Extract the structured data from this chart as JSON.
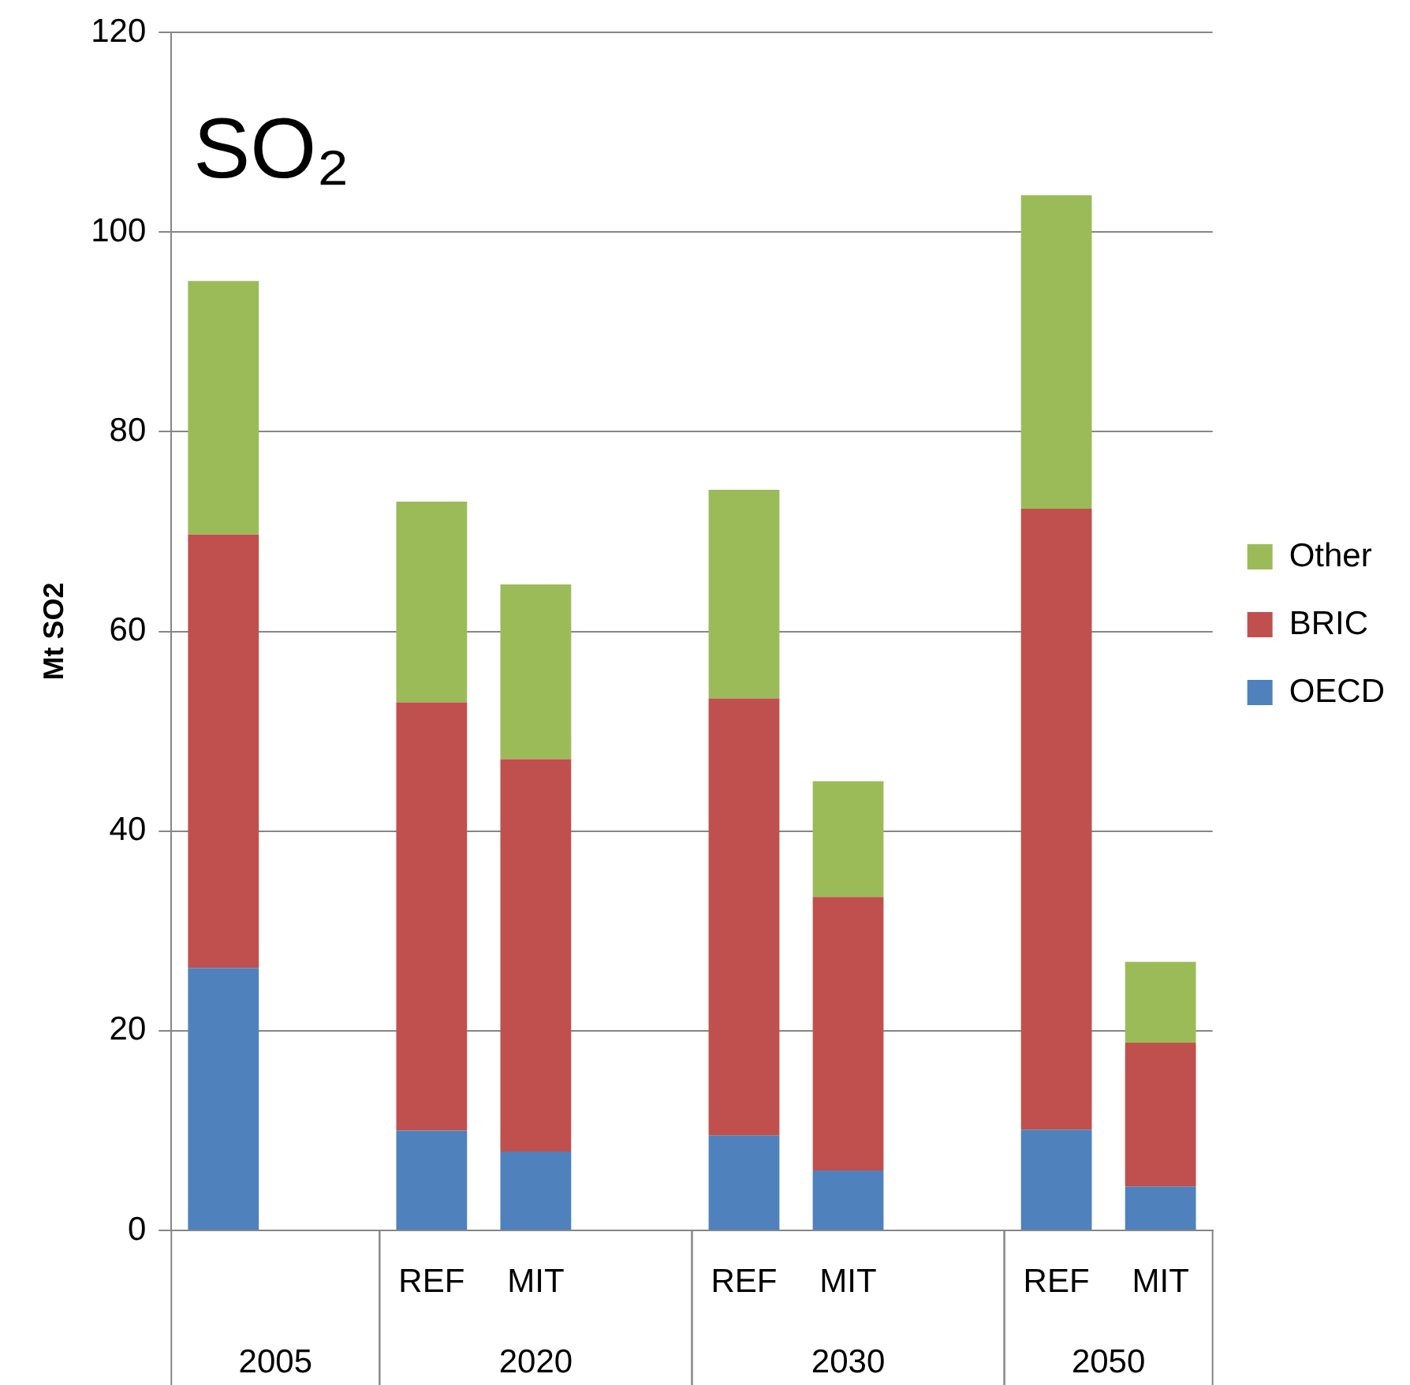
{
  "chart_data": {
    "type": "bar",
    "title": "SO₂",
    "ylabel": "Mt SO2",
    "categories": [
      null,
      null,
      "REF",
      "MIT",
      null,
      "REF",
      "MIT",
      null,
      "REF",
      "MIT"
    ],
    "annotations": [
      "2005",
      "2020",
      "2030",
      "2050"
    ],
    "stacked": true,
    "series": [
      {
        "name": "OECD",
        "color": "#4f81bd",
        "values": [
          26.3,
          null,
          10.0,
          7.9,
          null,
          9.5,
          6.0,
          null,
          10.1,
          4.4
        ]
      },
      {
        "name": "BRIC",
        "color": "#c0504d",
        "values": [
          43.4,
          null,
          42.9,
          39.3,
          null,
          43.8,
          27.4,
          null,
          62.2,
          14.4
        ]
      },
      {
        "name": "Other",
        "color": "#9bbb59",
        "values": [
          25.4,
          null,
          20.1,
          17.5,
          null,
          20.9,
          11.6,
          null,
          31.4,
          8.1
        ]
      }
    ],
    "ylim": [
      0,
      120
    ],
    "yticks": [
      0,
      20,
      40,
      60,
      80,
      100,
      120
    ],
    "grid": "y",
    "legend": "right"
  }
}
